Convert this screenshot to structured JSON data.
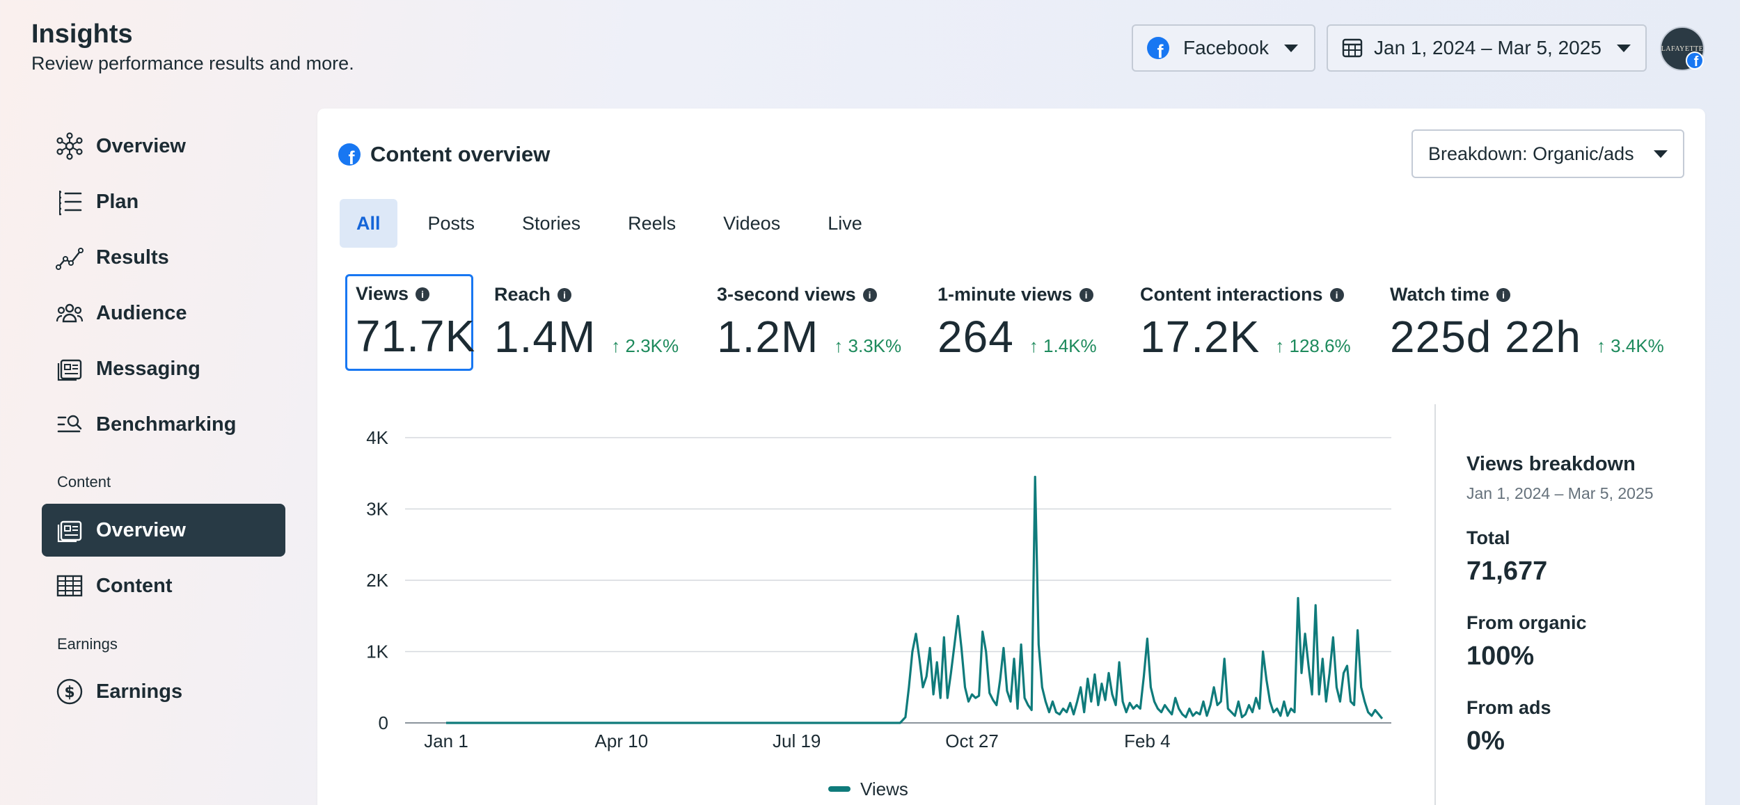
{
  "header": {
    "title": "Insights",
    "subtitle": "Review performance results and more.",
    "platform_label": "Facebook",
    "date_range_label": "Jan 1, 2024 – Mar 5, 2025",
    "avatar_text": "LAFAYETTE"
  },
  "sidebar": {
    "items": [
      {
        "label": "Overview",
        "icon": "network-icon"
      },
      {
        "label": "Plan",
        "icon": "list-icon"
      },
      {
        "label": "Results",
        "icon": "trend-icon"
      },
      {
        "label": "Audience",
        "icon": "people-icon"
      },
      {
        "label": "Messaging",
        "icon": "message-icon"
      },
      {
        "label": "Benchmarking",
        "icon": "benchmark-icon"
      }
    ],
    "content_section": "Content",
    "content_items": [
      {
        "label": "Overview",
        "icon": "content-overview-icon",
        "active": true
      },
      {
        "label": "Content",
        "icon": "table-icon"
      }
    ],
    "earnings_section": "Earnings",
    "earnings_items": [
      {
        "label": "Earnings",
        "icon": "dollar-icon"
      }
    ]
  },
  "card": {
    "title": "Content overview",
    "breakdown_label": "Breakdown: Organic/ads",
    "tabs": [
      "All",
      "Posts",
      "Stories",
      "Reels",
      "Videos",
      "Live"
    ],
    "active_tab": "All"
  },
  "metrics": [
    {
      "label": "Views",
      "value": "71.7K",
      "change": "",
      "selected": true
    },
    {
      "label": "Reach",
      "value": "1.4M",
      "change": "2.3K%"
    },
    {
      "label": "3-second views",
      "value": "1.2M",
      "change": "3.3K%"
    },
    {
      "label": "1-minute views",
      "value": "264",
      "change": "1.4K%"
    },
    {
      "label": "Content interactions",
      "value": "17.2K",
      "change": "128.6%"
    },
    {
      "label": "Watch time",
      "value": "225d 22h",
      "change": "3.4K%"
    }
  ],
  "breakdown": {
    "title": "Views breakdown",
    "date": "Jan 1, 2024 – Mar 5, 2025",
    "total_label": "Total",
    "total_value": "71,677",
    "organic_label": "From organic",
    "organic_value": "100%",
    "ads_label": "From ads",
    "ads_value": "0%"
  },
  "colors": {
    "accent": "#1877f2",
    "series": "#0f7b7b",
    "positive": "#1d8a5c",
    "sidebar_active": "#283a45"
  },
  "chart_data": {
    "type": "line",
    "yticks": [
      "0",
      "1K",
      "2K",
      "3K",
      "4K"
    ],
    "ylim": [
      0,
      4000
    ],
    "xticks": [
      "Jan 1",
      "Apr 10",
      "Jul 19",
      "Oct 27",
      "Feb 4"
    ],
    "legend": "Views",
    "series": [
      {
        "name": "Views",
        "day_range": [
          0,
          430
        ],
        "values_note": "",
        "points": [
          [
            0,
            0
          ],
          [
            259,
            0
          ],
          [
            262,
            80
          ],
          [
            264,
            500
          ],
          [
            266,
            1000
          ],
          [
            268,
            1250
          ],
          [
            270,
            900
          ],
          [
            272,
            500
          ],
          [
            274,
            650
          ],
          [
            276,
            1050
          ],
          [
            278,
            400
          ],
          [
            280,
            850
          ],
          [
            282,
            350
          ],
          [
            284,
            1200
          ],
          [
            286,
            350
          ],
          [
            288,
            700
          ],
          [
            290,
            1100
          ],
          [
            292,
            1500
          ],
          [
            294,
            1050
          ],
          [
            296,
            500
          ],
          [
            298,
            300
          ],
          [
            300,
            400
          ],
          [
            302,
            350
          ],
          [
            304,
            380
          ],
          [
            306,
            1280
          ],
          [
            308,
            1000
          ],
          [
            310,
            420
          ],
          [
            312,
            320
          ],
          [
            314,
            250
          ],
          [
            316,
            600
          ],
          [
            318,
            1050
          ],
          [
            320,
            450
          ],
          [
            322,
            300
          ],
          [
            324,
            900
          ],
          [
            326,
            200
          ],
          [
            328,
            1100
          ],
          [
            330,
            350
          ],
          [
            332,
            250
          ],
          [
            334,
            180
          ],
          [
            336,
            3450
          ],
          [
            338,
            1100
          ],
          [
            340,
            500
          ],
          [
            342,
            300
          ],
          [
            344,
            150
          ],
          [
            346,
            300
          ],
          [
            348,
            150
          ],
          [
            350,
            120
          ],
          [
            352,
            200
          ],
          [
            354,
            150
          ],
          [
            356,
            280
          ],
          [
            358,
            120
          ],
          [
            360,
            300
          ],
          [
            362,
            500
          ],
          [
            364,
            150
          ],
          [
            366,
            620
          ],
          [
            368,
            300
          ],
          [
            370,
            680
          ],
          [
            372,
            250
          ],
          [
            374,
            550
          ],
          [
            376,
            320
          ],
          [
            378,
            700
          ],
          [
            380,
            400
          ],
          [
            382,
            250
          ],
          [
            384,
            850
          ],
          [
            386,
            300
          ],
          [
            388,
            150
          ],
          [
            390,
            280
          ],
          [
            392,
            200
          ],
          [
            394,
            250
          ],
          [
            396,
            200
          ],
          [
            398,
            650
          ],
          [
            400,
            1180
          ],
          [
            402,
            500
          ],
          [
            404,
            300
          ],
          [
            406,
            200
          ],
          [
            408,
            150
          ],
          [
            410,
            250
          ],
          [
            412,
            180
          ],
          [
            414,
            120
          ],
          [
            416,
            350
          ],
          [
            418,
            200
          ],
          [
            420,
            120
          ],
          [
            422,
            80
          ],
          [
            424,
            200
          ],
          [
            426,
            100
          ],
          [
            428,
            150
          ],
          [
            430,
            120
          ],
          [
            432,
            300
          ],
          [
            434,
            100
          ],
          [
            436,
            250
          ],
          [
            438,
            500
          ],
          [
            440,
            250
          ],
          [
            442,
            300
          ],
          [
            444,
            900
          ],
          [
            446,
            200
          ],
          [
            448,
            150
          ],
          [
            450,
            100
          ],
          [
            452,
            300
          ],
          [
            454,
            80
          ],
          [
            456,
            120
          ],
          [
            458,
            250
          ],
          [
            460,
            150
          ],
          [
            462,
            350
          ],
          [
            464,
            200
          ],
          [
            466,
            1000
          ],
          [
            468,
            600
          ],
          [
            470,
            300
          ],
          [
            472,
            150
          ],
          [
            474,
            200
          ],
          [
            476,
            100
          ],
          [
            478,
            300
          ],
          [
            480,
            100
          ],
          [
            482,
            200
          ],
          [
            484,
            150
          ],
          [
            486,
            1750
          ],
          [
            488,
            700
          ],
          [
            490,
            1250
          ],
          [
            492,
            800
          ],
          [
            494,
            400
          ],
          [
            496,
            1650
          ],
          [
            498,
            400
          ],
          [
            500,
            900
          ],
          [
            502,
            300
          ],
          [
            504,
            700
          ],
          [
            506,
            1200
          ],
          [
            508,
            500
          ],
          [
            510,
            300
          ],
          [
            512,
            700
          ],
          [
            514,
            800
          ],
          [
            516,
            300
          ],
          [
            518,
            250
          ],
          [
            520,
            1300
          ],
          [
            522,
            500
          ],
          [
            524,
            300
          ],
          [
            526,
            150
          ],
          [
            528,
            100
          ],
          [
            530,
            180
          ],
          [
            532,
            120
          ],
          [
            534,
            60
          ]
        ]
      }
    ]
  }
}
